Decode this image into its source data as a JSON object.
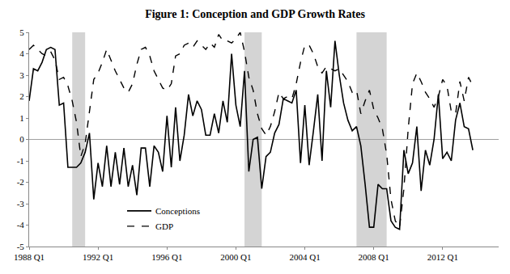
{
  "chart_data": {
    "type": "line",
    "title": "Figure 1: Conception and GDP Growth Rates",
    "x": [
      1988,
      1988.25,
      1988.5,
      1988.75,
      1989,
      1989.25,
      1989.5,
      1989.75,
      1990,
      1990.25,
      1990.5,
      1990.75,
      1991,
      1991.25,
      1991.5,
      1991.75,
      1992,
      1992.25,
      1992.5,
      1992.75,
      1993,
      1993.25,
      1993.5,
      1993.75,
      1994,
      1994.25,
      1994.5,
      1994.75,
      1995,
      1995.25,
      1995.5,
      1995.75,
      1996,
      1996.25,
      1996.5,
      1996.75,
      1997,
      1997.25,
      1997.5,
      1997.75,
      1998,
      1998.25,
      1998.5,
      1998.75,
      1999,
      1999.25,
      1999.5,
      1999.75,
      2000,
      2000.25,
      2000.5,
      2000.75,
      2001,
      2001.25,
      2001.5,
      2001.75,
      2002,
      2002.25,
      2002.5,
      2002.75,
      2003,
      2003.25,
      2003.5,
      2003.75,
      2004,
      2004.25,
      2004.5,
      2004.75,
      2005,
      2005.25,
      2005.5,
      2005.75,
      2006,
      2006.25,
      2006.5,
      2006.75,
      2007,
      2007.25,
      2007.5,
      2007.75,
      2008,
      2008.25,
      2008.5,
      2008.75,
      2009,
      2009.25,
      2009.5,
      2009.75,
      2010,
      2010.25,
      2010.5,
      2010.75,
      2011,
      2011.25,
      2011.5,
      2011.75,
      2012,
      2012.25,
      2012.5,
      2012.75,
      2013,
      2013.25,
      2013.5,
      2013.75
    ],
    "series": [
      {
        "name": "Conceptions",
        "color": "#000000",
        "line_style": "solid",
        "values": [
          1.8,
          3.3,
          3.2,
          3.6,
          4.2,
          4.3,
          4.2,
          1.6,
          1.7,
          -1.3,
          -1.3,
          -1.3,
          -1.1,
          -0.6,
          0.3,
          -2.8,
          -1.1,
          -2.2,
          -0.3,
          -2.2,
          -0.6,
          -2.1,
          -0.4,
          -2.2,
          -1.2,
          -2.6,
          -0.4,
          -0.4,
          -2.2,
          -0.3,
          -0.6,
          -1.5,
          1.1,
          -1.3,
          1.5,
          -1.0,
          0.2,
          2.1,
          1.1,
          1.8,
          1.4,
          0.2,
          0.2,
          1.2,
          0.3,
          1.8,
          0.8,
          4.0,
          1.6,
          0.6,
          3.2,
          -1.5,
          0.0,
          0.1,
          -2.3,
          -0.8,
          -0.6,
          0.3,
          0.7,
          1.9,
          1.8,
          1.7,
          2.3,
          -1.1,
          1.6,
          -1.2,
          0.4,
          2.1,
          -1.0,
          3.2,
          1.5,
          4.6,
          3.0,
          1.7,
          0.9,
          0.4,
          0.6,
          -0.3,
          -2.1,
          -4.1,
          -4.1,
          -2.1,
          -2.3,
          -2.3,
          -3.8,
          -4.1,
          -4.2,
          -0.5,
          -1.6,
          -1.1,
          0.6,
          -2.4,
          -0.5,
          -1.2,
          0.0,
          2.1,
          -0.9,
          -0.6,
          -1.0,
          0.9,
          1.7,
          0.6,
          0.5,
          -0.5
        ]
      },
      {
        "name": "GDP",
        "color": "#000000",
        "line_style": "dash",
        "values": [
          4.2,
          4.4,
          4.2,
          4.0,
          3.9,
          4.1,
          3.7,
          2.8,
          2.9,
          2.5,
          1.8,
          0.8,
          -0.8,
          -0.2,
          1.3,
          2.8,
          3.1,
          3.6,
          4.2,
          3.7,
          3.2,
          2.8,
          2.4,
          2.2,
          2.6,
          3.5,
          4.2,
          4.3,
          3.9,
          3.2,
          2.8,
          2.4,
          2.3,
          2.6,
          3.9,
          4.0,
          4.4,
          4.5,
          4.3,
          4.6,
          4.4,
          4.2,
          4.5,
          4.3,
          4.9,
          4.6,
          4.6,
          4.5,
          4.7,
          5.0,
          4.1,
          2.9,
          2.3,
          1.2,
          0.5,
          0.2,
          0.6,
          1.3,
          2.2,
          1.9,
          2.0,
          1.9,
          2.6,
          3.6,
          4.4,
          4.4,
          4.0,
          3.4,
          3.1,
          3.4,
          3.3,
          3.2,
          3.3,
          3.0,
          2.7,
          2.2,
          2.3,
          1.2,
          1.8,
          2.3,
          1.4,
          1.0,
          0.5,
          -0.7,
          -2.8,
          -3.8,
          -4.1,
          -2.3,
          0.5,
          2.6,
          3.1,
          2.7,
          2.2,
          1.9,
          1.5,
          2.0,
          2.8,
          2.5,
          1.3,
          1.2,
          2.7,
          1.8,
          2.9,
          2.5
        ]
      }
    ],
    "xlim": [
      1988,
      2015.25
    ],
    "xticks": [
      {
        "value": 1988,
        "label": "1988 Q1"
      },
      {
        "value": 1992,
        "label": "1992 Q1"
      },
      {
        "value": 1996,
        "label": "1996 Q1"
      },
      {
        "value": 2000,
        "label": "2000 Q1"
      },
      {
        "value": 2004,
        "label": "2004 Q1"
      },
      {
        "value": 2008,
        "label": "2008 Q1"
      },
      {
        "value": 2012,
        "label": "2012 Q1"
      }
    ],
    "ylim": [
      -5,
      5
    ],
    "yticks": [
      -5,
      -4,
      -3,
      -2,
      -1,
      0,
      1,
      2,
      3,
      4,
      5
    ],
    "grid": false,
    "legend": "lower left",
    "shaded_periods": [
      [
        1990.5,
        1991.25
      ],
      [
        2000.5,
        2001.5
      ],
      [
        2007.0,
        2008.75
      ]
    ]
  }
}
